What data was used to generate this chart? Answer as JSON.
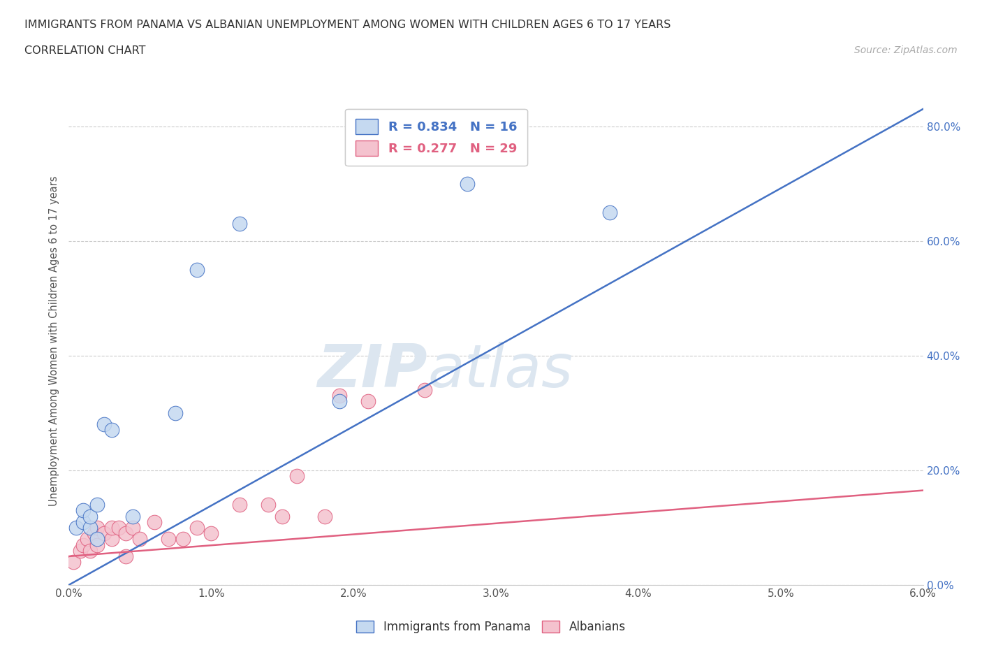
{
  "title_line1": "IMMIGRANTS FROM PANAMA VS ALBANIAN UNEMPLOYMENT AMONG WOMEN WITH CHILDREN AGES 6 TO 17 YEARS",
  "title_line2": "CORRELATION CHART",
  "source_text": "Source: ZipAtlas.com",
  "ylabel": "Unemployment Among Women with Children Ages 6 to 17 years",
  "xlim": [
    0.0,
    0.06
  ],
  "ylim": [
    0.0,
    0.85
  ],
  "xticks": [
    0.0,
    0.01,
    0.02,
    0.03,
    0.04,
    0.05,
    0.06
  ],
  "xticklabels": [
    "0.0%",
    "1.0%",
    "2.0%",
    "3.0%",
    "4.0%",
    "5.0%",
    "6.0%"
  ],
  "yticks": [
    0.0,
    0.2,
    0.4,
    0.6,
    0.8
  ],
  "yticklabels": [
    "0.0%",
    "20.0%",
    "40.0%",
    "60.0%",
    "80.0%"
  ],
  "blue_fill": "#c5d9f0",
  "blue_edge": "#4472c4",
  "pink_fill": "#f4c2ce",
  "pink_edge": "#e06080",
  "blue_line": "#4472c4",
  "pink_line": "#e06080",
  "watermark_color": "#dce6f0",
  "panama_R": 0.834,
  "panama_N": 16,
  "albanian_R": 0.277,
  "albanian_N": 29,
  "panama_scatter_x": [
    0.0005,
    0.001,
    0.001,
    0.0015,
    0.0015,
    0.002,
    0.002,
    0.0025,
    0.003,
    0.0045,
    0.0075,
    0.009,
    0.012,
    0.019,
    0.028,
    0.038
  ],
  "panama_scatter_y": [
    0.1,
    0.11,
    0.13,
    0.1,
    0.12,
    0.08,
    0.14,
    0.28,
    0.27,
    0.12,
    0.3,
    0.55,
    0.63,
    0.32,
    0.7,
    0.65
  ],
  "albanian_scatter_x": [
    0.0003,
    0.0008,
    0.001,
    0.0013,
    0.0015,
    0.0018,
    0.002,
    0.002,
    0.0025,
    0.003,
    0.003,
    0.0035,
    0.004,
    0.004,
    0.0045,
    0.005,
    0.006,
    0.007,
    0.008,
    0.009,
    0.01,
    0.012,
    0.014,
    0.015,
    0.016,
    0.018,
    0.019,
    0.021,
    0.025
  ],
  "albanian_scatter_y": [
    0.04,
    0.06,
    0.07,
    0.08,
    0.06,
    0.09,
    0.07,
    0.1,
    0.09,
    0.08,
    0.1,
    0.1,
    0.05,
    0.09,
    0.1,
    0.08,
    0.11,
    0.08,
    0.08,
    0.1,
    0.09,
    0.14,
    0.14,
    0.12,
    0.19,
    0.12,
    0.33,
    0.32,
    0.34
  ],
  "background_color": "#ffffff",
  "grid_color": "#cccccc",
  "panama_line_x0": 0.0,
  "panama_line_y0": 0.0,
  "panama_line_x1": 0.06,
  "panama_line_y1": 0.83,
  "albanian_line_x0": 0.0,
  "albanian_line_y0": 0.05,
  "albanian_line_x1": 0.06,
  "albanian_line_y1": 0.165
}
